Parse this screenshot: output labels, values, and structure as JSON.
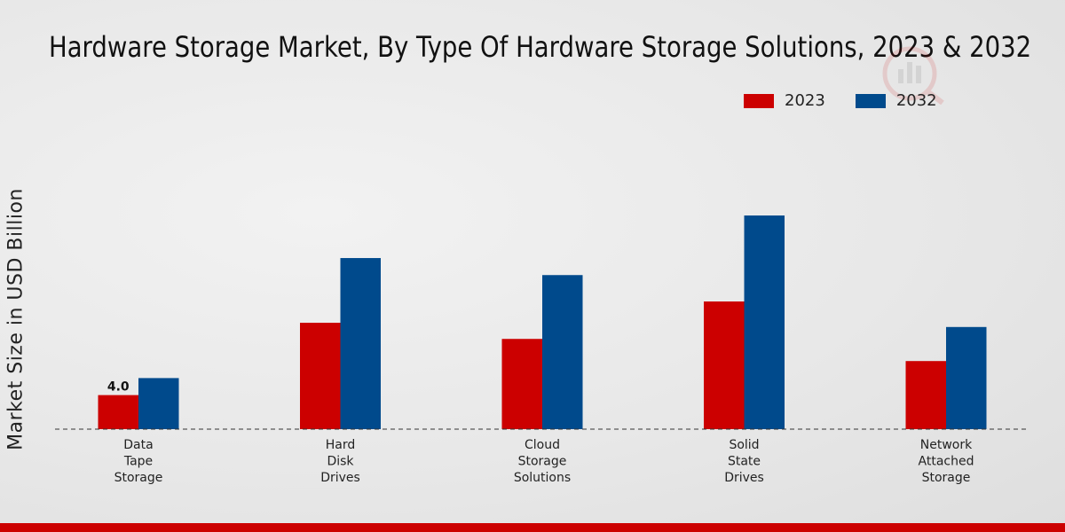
{
  "chart_data": {
    "type": "bar",
    "title": "Hardware Storage Market, By Type Of Hardware Storage Solutions, 2023 & 2032",
    "xlabel": "",
    "ylabel": "Market Size in USD Billion",
    "categories": [
      "Data\nTape\nStorage",
      "Hard\nDisk\nDrives",
      "Cloud\nStorage\nSolutions",
      "Solid\nState\nDrives",
      "Network\nAttached\nStorage"
    ],
    "series": [
      {
        "name": "2023",
        "color": "#cc0000",
        "values": [
          4.0,
          12.5,
          10.6,
          15.0,
          8.0
        ]
      },
      {
        "name": "2032",
        "color": "#004a8c",
        "values": [
          6.0,
          20.1,
          18.1,
          25.1,
          12.0
        ]
      }
    ],
    "data_labels": [
      {
        "series": 0,
        "index": 0,
        "text": "4.0"
      }
    ],
    "ylim": [
      0,
      40
    ],
    "grid": false,
    "legend": "top-right"
  }
}
